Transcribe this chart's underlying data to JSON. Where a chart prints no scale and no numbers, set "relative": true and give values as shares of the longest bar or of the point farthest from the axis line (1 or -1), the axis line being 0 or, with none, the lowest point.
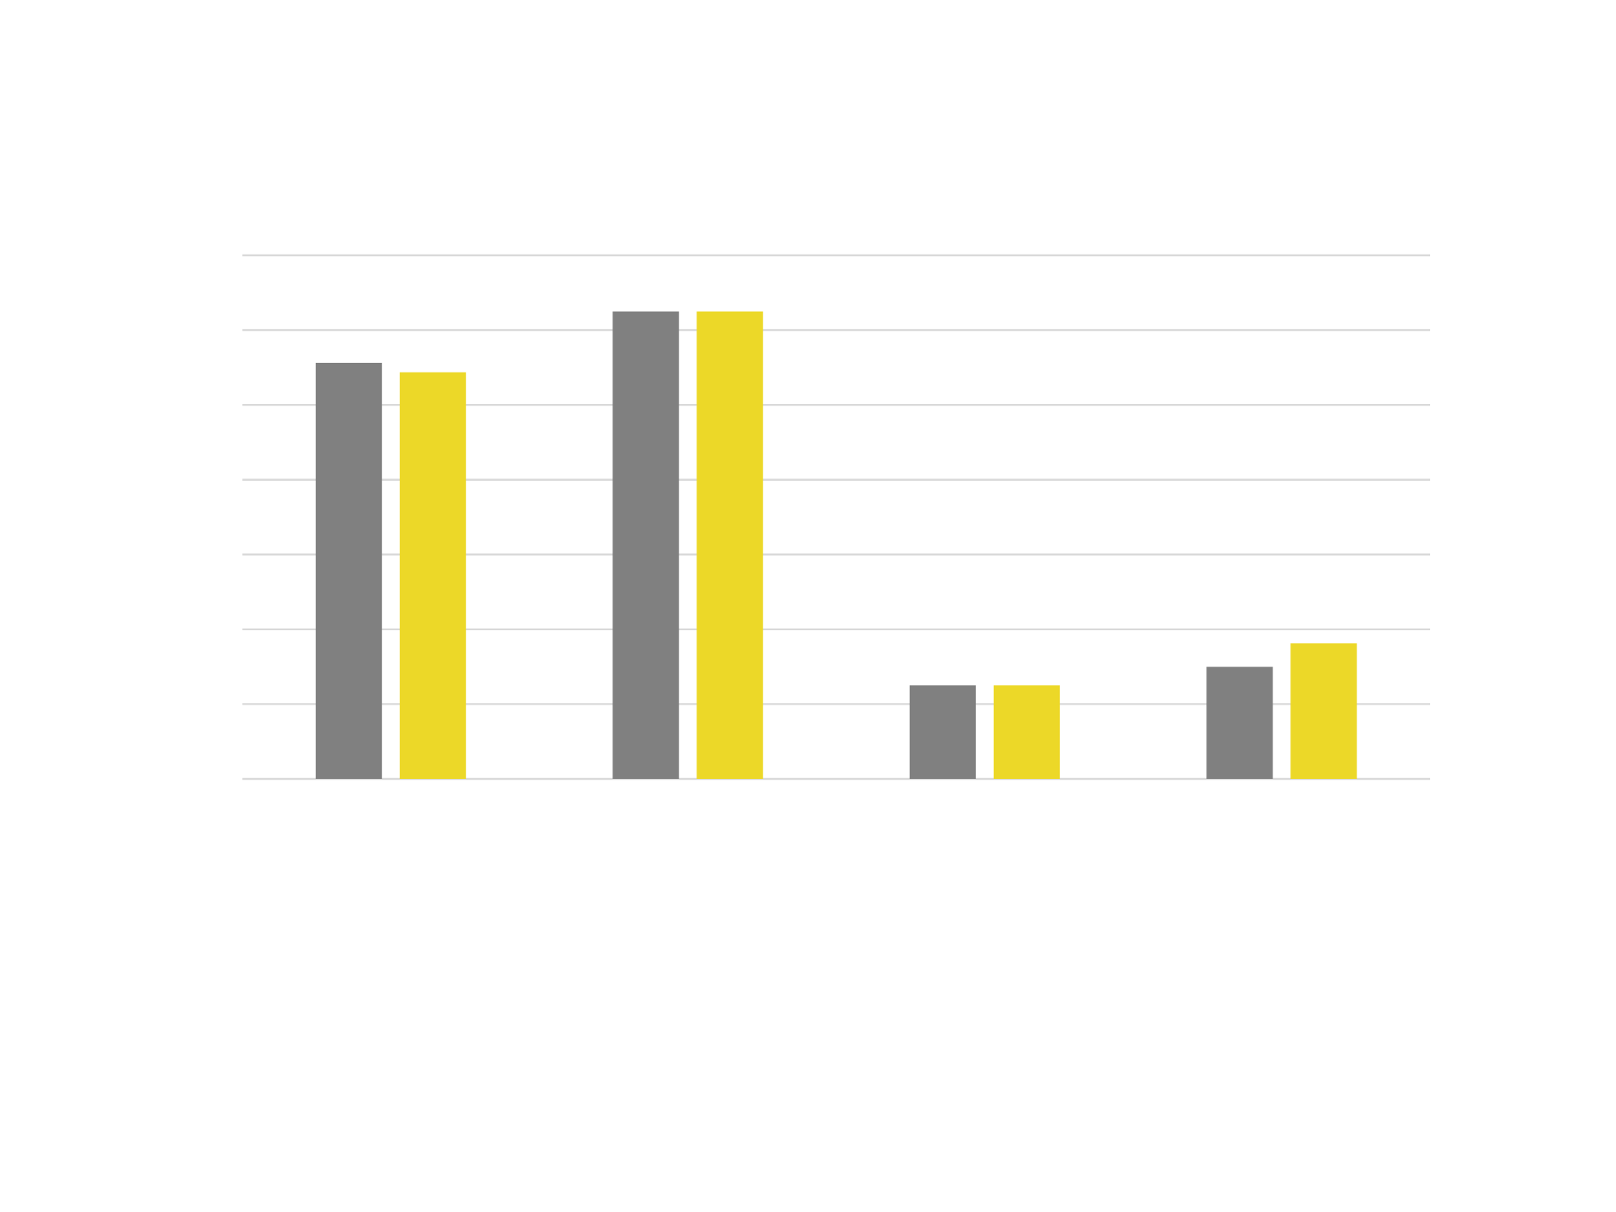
{
  "chart_data": {
    "type": "bar",
    "relative": true,
    "categories": [
      null,
      null,
      null,
      null
    ],
    "series": [
      {
        "color": "#808080",
        "values": [
          0.89,
          1.0,
          0.2,
          0.24
        ]
      },
      {
        "color": "#ecd828",
        "values": [
          0.87,
          1.0,
          0.2,
          0.29
        ]
      }
    ],
    "grid": "y"
  }
}
